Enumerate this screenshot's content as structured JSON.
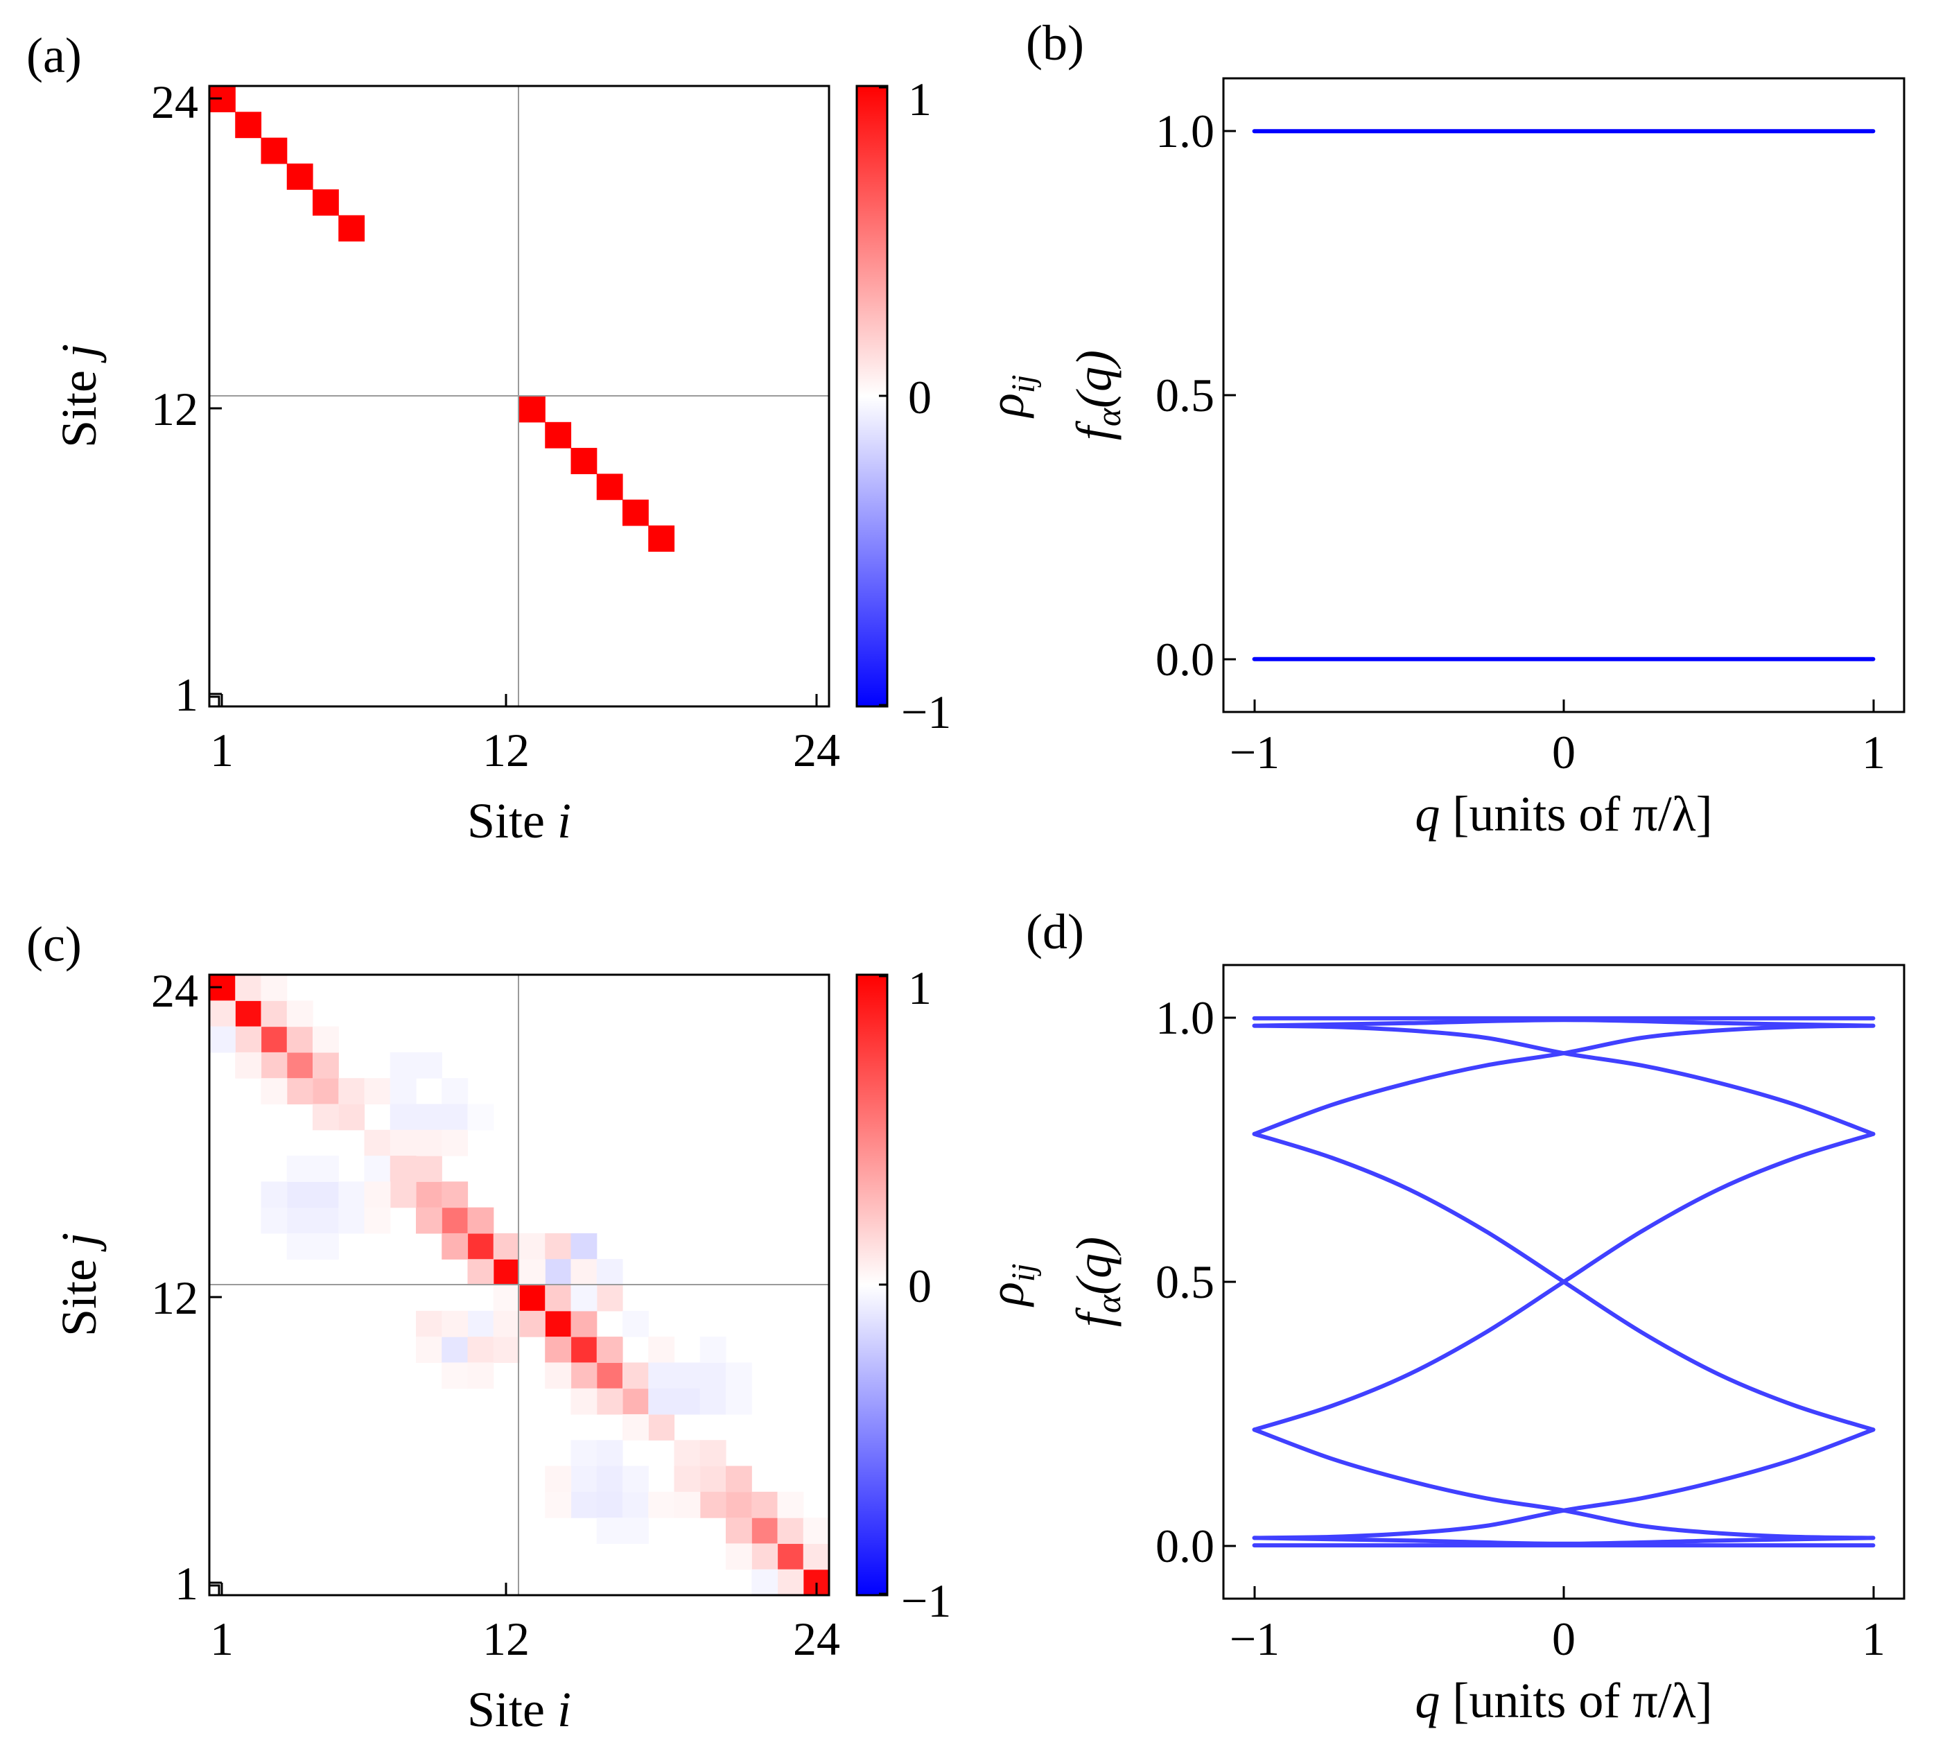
{
  "figure": {
    "panels": [
      {
        "label": "(a)"
      },
      {
        "label": "(b)"
      },
      {
        "label": "(c)"
      },
      {
        "label": "(d)"
      }
    ]
  },
  "colors": {
    "positive": "#ff0000",
    "zero": "#ffffff",
    "negative": "#0000ff",
    "band_line": "#0000ff",
    "band_line_d": "#4040ff",
    "grid": "#9a9a9a"
  },
  "chart_data": [
    {
      "panel": "(a)",
      "type": "heatmap",
      "xlabel_prefix": "Site ",
      "xlabel_var": "i",
      "ylabel_prefix": "Site ",
      "ylabel_var": "j",
      "grid_n": 24,
      "xticks": [
        "1",
        "12",
        "24"
      ],
      "yticks": [
        "1",
        "12",
        "24"
      ],
      "colorbar": {
        "label": "ρ",
        "label_sub": "ij",
        "ticks": [
          "1",
          "0",
          "−1"
        ],
        "range": [
          -1,
          1
        ]
      },
      "cells": [
        {
          "i": 1,
          "j": 24,
          "v": 1.0
        },
        {
          "i": 2,
          "j": 23,
          "v": 1.0
        },
        {
          "i": 3,
          "j": 22,
          "v": 1.0
        },
        {
          "i": 4,
          "j": 21,
          "v": 1.0
        },
        {
          "i": 5,
          "j": 20,
          "v": 1.0
        },
        {
          "i": 6,
          "j": 19,
          "v": 1.0
        },
        {
          "i": 13,
          "j": 12,
          "v": 1.0
        },
        {
          "i": 14,
          "j": 11,
          "v": 1.0
        },
        {
          "i": 15,
          "j": 10,
          "v": 1.0
        },
        {
          "i": 16,
          "j": 9,
          "v": 1.0
        },
        {
          "i": 17,
          "j": 8,
          "v": 1.0
        },
        {
          "i": 18,
          "j": 7,
          "v": 1.0
        }
      ]
    },
    {
      "panel": "(b)",
      "type": "line",
      "xlabel_var": "q",
      "xlabel_rest": " [units of π/λ]",
      "ylabel": "f",
      "ylabel_sub": "α",
      "ylabel_arg": "(q)",
      "xlim": [
        -1.1,
        1.1
      ],
      "ylim": [
        -0.1,
        1.1
      ],
      "xticks": [
        {
          "v": -1,
          "label": "−1"
        },
        {
          "v": 0,
          "label": "0"
        },
        {
          "v": 1,
          "label": "1"
        }
      ],
      "yticks": [
        {
          "v": 0,
          "label": "0.0"
        },
        {
          "v": 0.5,
          "label": "0.5"
        },
        {
          "v": 1,
          "label": "1.0"
        }
      ],
      "series": [
        {
          "name": "band-1",
          "x": [
            -1,
            1
          ],
          "y": [
            1.0,
            1.0
          ]
        },
        {
          "name": "band-0",
          "x": [
            -1,
            1
          ],
          "y": [
            0.0,
            0.0
          ]
        }
      ]
    },
    {
      "panel": "(c)",
      "type": "heatmap",
      "xlabel_prefix": "Site ",
      "xlabel_var": "i",
      "ylabel_prefix": "Site ",
      "ylabel_var": "j",
      "grid_n": 24,
      "xticks": [
        "1",
        "12",
        "24"
      ],
      "yticks": [
        "1",
        "12",
        "24"
      ],
      "colorbar": {
        "label": "ρ",
        "label_sub": "ij",
        "ticks": [
          "1",
          "0",
          "−1"
        ],
        "range": [
          -1,
          1
        ]
      },
      "cells": [
        {
          "i": 1,
          "j": 24,
          "v": 1.0
        },
        {
          "i": 2,
          "j": 23,
          "v": 0.95
        },
        {
          "i": 3,
          "j": 22,
          "v": 0.7
        },
        {
          "i": 4,
          "j": 21,
          "v": 0.5
        },
        {
          "i": 5,
          "j": 20,
          "v": 0.25
        },
        {
          "i": 6,
          "j": 19,
          "v": 0.12
        },
        {
          "i": 7,
          "j": 18,
          "v": 0.08
        },
        {
          "i": 8,
          "j": 17,
          "v": 0.15
        },
        {
          "i": 9,
          "j": 16,
          "v": 0.3
        },
        {
          "i": 10,
          "j": 15,
          "v": 0.55
        },
        {
          "i": 11,
          "j": 14,
          "v": 0.8
        },
        {
          "i": 12,
          "j": 13,
          "v": 0.97
        },
        {
          "i": 13,
          "j": 12,
          "v": 1.0
        },
        {
          "i": 14,
          "j": 11,
          "v": 0.97
        },
        {
          "i": 15,
          "j": 10,
          "v": 0.8
        },
        {
          "i": 16,
          "j": 9,
          "v": 0.55
        },
        {
          "i": 17,
          "j": 8,
          "v": 0.3
        },
        {
          "i": 18,
          "j": 7,
          "v": 0.15
        },
        {
          "i": 19,
          "j": 6,
          "v": 0.08
        },
        {
          "i": 20,
          "j": 5,
          "v": 0.12
        },
        {
          "i": 21,
          "j": 4,
          "v": 0.25
        },
        {
          "i": 22,
          "j": 3,
          "v": 0.5
        },
        {
          "i": 23,
          "j": 2,
          "v": 0.7
        },
        {
          "i": 24,
          "j": 1,
          "v": 0.95
        },
        {
          "i": 2,
          "j": 24,
          "v": 0.1
        },
        {
          "i": 1,
          "j": 23,
          "v": 0.1
        },
        {
          "i": 3,
          "j": 23,
          "v": 0.15
        },
        {
          "i": 2,
          "j": 22,
          "v": 0.15
        },
        {
          "i": 4,
          "j": 22,
          "v": 0.2
        },
        {
          "i": 3,
          "j": 21,
          "v": 0.2
        },
        {
          "i": 5,
          "j": 21,
          "v": 0.2
        },
        {
          "i": 4,
          "j": 20,
          "v": 0.2
        },
        {
          "i": 6,
          "j": 20,
          "v": 0.1
        },
        {
          "i": 5,
          "j": 19,
          "v": 0.1
        },
        {
          "i": 9,
          "j": 17,
          "v": 0.15
        },
        {
          "i": 8,
          "j": 16,
          "v": 0.15
        },
        {
          "i": 10,
          "j": 16,
          "v": 0.25
        },
        {
          "i": 9,
          "j": 15,
          "v": 0.25
        },
        {
          "i": 11,
          "j": 15,
          "v": 0.3
        },
        {
          "i": 10,
          "j": 14,
          "v": 0.3
        },
        {
          "i": 12,
          "j": 14,
          "v": 0.2
        },
        {
          "i": 11,
          "j": 13,
          "v": 0.2
        },
        {
          "i": 14,
          "j": 12,
          "v": 0.2
        },
        {
          "i": 13,
          "j": 11,
          "v": 0.2
        },
        {
          "i": 15,
          "j": 11,
          "v": 0.3
        },
        {
          "i": 14,
          "j": 10,
          "v": 0.3
        },
        {
          "i": 16,
          "j": 10,
          "v": 0.25
        },
        {
          "i": 15,
          "j": 9,
          "v": 0.25
        },
        {
          "i": 17,
          "j": 9,
          "v": 0.15
        },
        {
          "i": 16,
          "j": 8,
          "v": 0.15
        },
        {
          "i": 20,
          "j": 6,
          "v": 0.1
        },
        {
          "i": 19,
          "j": 5,
          "v": 0.1
        },
        {
          "i": 21,
          "j": 5,
          "v": 0.2
        },
        {
          "i": 20,
          "j": 4,
          "v": 0.2
        },
        {
          "i": 22,
          "j": 4,
          "v": 0.2
        },
        {
          "i": 21,
          "j": 3,
          "v": 0.2
        },
        {
          "i": 23,
          "j": 3,
          "v": 0.15
        },
        {
          "i": 22,
          "j": 2,
          "v": 0.15
        },
        {
          "i": 24,
          "j": 2,
          "v": 0.1
        },
        {
          "i": 23,
          "j": 1,
          "v": 0.1
        },
        {
          "i": 3,
          "j": 24,
          "v": 0.04
        },
        {
          "i": 1,
          "j": 22,
          "v": -0.05
        },
        {
          "i": 4,
          "j": 23,
          "v": 0.04
        },
        {
          "i": 2,
          "j": 21,
          "v": 0.05
        },
        {
          "i": 5,
          "j": 22,
          "v": 0.04
        },
        {
          "i": 3,
          "j": 20,
          "v": 0.04
        },
        {
          "i": 7,
          "j": 20,
          "v": 0.05
        },
        {
          "i": 8,
          "j": 20,
          "v": -0.04
        },
        {
          "i": 8,
          "j": 21,
          "v": -0.04
        },
        {
          "i": 9,
          "j": 21,
          "v": -0.04
        },
        {
          "i": 8,
          "j": 19,
          "v": -0.06
        },
        {
          "i": 9,
          "j": 19,
          "v": -0.06
        },
        {
          "i": 8,
          "j": 18,
          "v": 0.05
        },
        {
          "i": 9,
          "j": 18,
          "v": 0.05
        },
        {
          "i": 7,
          "j": 17,
          "v": -0.03
        },
        {
          "i": 8,
          "j": 17,
          "v": 0.15
        },
        {
          "i": 10,
          "j": 20,
          "v": -0.03
        },
        {
          "i": 10,
          "j": 19,
          "v": -0.06
        },
        {
          "i": 10,
          "j": 18,
          "v": 0.04
        },
        {
          "i": 11,
          "j": 19,
          "v": -0.02
        },
        {
          "i": 4,
          "j": 15,
          "v": -0.06
        },
        {
          "i": 5,
          "j": 15,
          "v": -0.06
        },
        {
          "i": 4,
          "j": 16,
          "v": -0.08
        },
        {
          "i": 5,
          "j": 16,
          "v": -0.08
        },
        {
          "i": 3,
          "j": 15,
          "v": -0.04
        },
        {
          "i": 3,
          "j": 16,
          "v": -0.05
        },
        {
          "i": 6,
          "j": 16,
          "v": -0.04
        },
        {
          "i": 6,
          "j": 15,
          "v": -0.04
        },
        {
          "i": 4,
          "j": 14,
          "v": -0.03
        },
        {
          "i": 5,
          "j": 14,
          "v": -0.03
        },
        {
          "i": 4,
          "j": 17,
          "v": -0.03
        },
        {
          "i": 5,
          "j": 17,
          "v": -0.03
        },
        {
          "i": 7,
          "j": 16,
          "v": 0.04
        },
        {
          "i": 7,
          "j": 15,
          "v": 0.03
        },
        {
          "i": 13,
          "j": 14,
          "v": 0.05
        },
        {
          "i": 14,
          "j": 14,
          "v": 0.15
        },
        {
          "i": 15,
          "j": 14,
          "v": -0.15
        },
        {
          "i": 14,
          "j": 13,
          "v": -0.15
        },
        {
          "i": 15,
          "j": 13,
          "v": 0.05
        },
        {
          "i": 16,
          "j": 13,
          "v": -0.05
        },
        {
          "i": 13,
          "j": 13,
          "v": 0.04
        },
        {
          "i": 16,
          "j": 12,
          "v": 0.12
        },
        {
          "i": 15,
          "j": 12,
          "v": -0.04
        },
        {
          "i": 12,
          "j": 12,
          "v": 0.03
        },
        {
          "i": 9,
          "j": 11,
          "v": 0.08
        },
        {
          "i": 9,
          "j": 10,
          "v": 0.04
        },
        {
          "i": 10,
          "j": 10,
          "v": -0.1
        },
        {
          "i": 11,
          "j": 11,
          "v": -0.05
        },
        {
          "i": 11,
          "j": 10,
          "v": 0.1
        },
        {
          "i": 10,
          "j": 11,
          "v": 0.05
        },
        {
          "i": 12,
          "j": 10,
          "v": 0.08
        },
        {
          "i": 12,
          "j": 11,
          "v": 0.05
        },
        {
          "i": 10,
          "j": 9,
          "v": 0.03
        },
        {
          "i": 11,
          "j": 9,
          "v": 0.04
        },
        {
          "i": 14,
          "j": 9,
          "v": 0.05
        },
        {
          "i": 15,
          "j": 8,
          "v": 0.05
        },
        {
          "i": 17,
          "j": 11,
          "v": -0.03
        },
        {
          "i": 18,
          "j": 10,
          "v": 0.04
        },
        {
          "i": 18,
          "j": 9,
          "v": -0.06
        },
        {
          "i": 19,
          "j": 9,
          "v": -0.06
        },
        {
          "i": 18,
          "j": 8,
          "v": -0.08
        },
        {
          "i": 19,
          "j": 8,
          "v": -0.08
        },
        {
          "i": 20,
          "j": 9,
          "v": -0.06
        },
        {
          "i": 20,
          "j": 8,
          "v": -0.06
        },
        {
          "i": 17,
          "j": 7,
          "v": 0.04
        },
        {
          "i": 20,
          "j": 10,
          "v": -0.03
        },
        {
          "i": 21,
          "j": 9,
          "v": -0.03
        },
        {
          "i": 21,
          "j": 8,
          "v": -0.03
        },
        {
          "i": 15,
          "j": 6,
          "v": -0.04
        },
        {
          "i": 16,
          "j": 6,
          "v": -0.05
        },
        {
          "i": 15,
          "j": 5,
          "v": -0.05
        },
        {
          "i": 16,
          "j": 5,
          "v": -0.07
        },
        {
          "i": 15,
          "j": 4,
          "v": -0.07
        },
        {
          "i": 16,
          "j": 4,
          "v": -0.08
        },
        {
          "i": 17,
          "j": 4,
          "v": -0.05
        },
        {
          "i": 17,
          "j": 5,
          "v": -0.04
        },
        {
          "i": 14,
          "j": 5,
          "v": 0.04
        },
        {
          "i": 14,
          "j": 4,
          "v": 0.03
        },
        {
          "i": 16,
          "j": 3,
          "v": -0.03
        },
        {
          "i": 17,
          "j": 3,
          "v": -0.03
        },
        {
          "i": 18,
          "j": 4,
          "v": 0.03
        },
        {
          "i": 19,
          "j": 4,
          "v": 0.04
        },
        {
          "i": 21,
          "j": 2,
          "v": 0.04
        },
        {
          "i": 22,
          "j": 1,
          "v": -0.04
        },
        {
          "i": 23,
          "j": 4,
          "v": 0.03
        },
        {
          "i": 24,
          "j": 3,
          "v": 0.03
        }
      ]
    },
    {
      "panel": "(d)",
      "type": "line",
      "xlabel_var": "q",
      "xlabel_rest": " [units of π/λ]",
      "ylabel": "f",
      "ylabel_sub": "α",
      "ylabel_arg": "(q)",
      "xlim": [
        -1.1,
        1.1
      ],
      "ylim": [
        -0.1,
        1.1
      ],
      "xticks": [
        {
          "v": -1,
          "label": "−1"
        },
        {
          "v": 0,
          "label": "0"
        },
        {
          "v": 1,
          "label": "1"
        }
      ],
      "yticks": [
        {
          "v": 0,
          "label": "0.0"
        },
        {
          "v": 0.5,
          "label": "0.5"
        },
        {
          "v": 1,
          "label": "1.0"
        }
      ],
      "series": [
        {
          "name": "band-top-flat",
          "x": [
            -1,
            -0.5,
            0,
            0.5,
            1
          ],
          "y": [
            0.999,
            0.999,
            0.999,
            0.999,
            0.999
          ]
        },
        {
          "name": "band-top-dip",
          "x": [
            -1,
            -0.5,
            0,
            0.5,
            1
          ],
          "y": [
            0.985,
            0.99,
            0.996,
            0.99,
            0.985
          ]
        },
        {
          "name": "band-upper-x1",
          "x": [
            -1,
            -0.75,
            -0.5,
            -0.25,
            0,
            0.25,
            0.5,
            0.75,
            1
          ],
          "y": [
            0.985,
            0.983,
            0.976,
            0.962,
            0.933,
            0.91,
            0.877,
            0.835,
            0.78
          ]
        },
        {
          "name": "band-upper-x2",
          "x": [
            -1,
            -0.75,
            -0.5,
            -0.25,
            0,
            0.25,
            0.5,
            0.75,
            1
          ],
          "y": [
            0.78,
            0.835,
            0.877,
            0.91,
            0.933,
            0.962,
            0.976,
            0.983,
            0.985
          ]
        },
        {
          "name": "band-mid-down",
          "x": [
            -1,
            -0.75,
            -0.5,
            -0.25,
            0,
            0.25,
            0.5,
            0.75,
            1
          ],
          "y": [
            0.78,
            0.735,
            0.675,
            0.595,
            0.5,
            0.405,
            0.325,
            0.265,
            0.22
          ]
        },
        {
          "name": "band-mid-up",
          "x": [
            -1,
            -0.75,
            -0.5,
            -0.25,
            0,
            0.25,
            0.5,
            0.75,
            1
          ],
          "y": [
            0.22,
            0.265,
            0.325,
            0.405,
            0.5,
            0.595,
            0.675,
            0.735,
            0.78
          ]
        },
        {
          "name": "band-lower-x1",
          "x": [
            -1,
            -0.75,
            -0.5,
            -0.25,
            0,
            0.25,
            0.5,
            0.75,
            1
          ],
          "y": [
            0.22,
            0.165,
            0.123,
            0.09,
            0.067,
            0.038,
            0.024,
            0.017,
            0.015
          ]
        },
        {
          "name": "band-lower-x2",
          "x": [
            -1,
            -0.75,
            -0.5,
            -0.25,
            0,
            0.25,
            0.5,
            0.75,
            1
          ],
          "y": [
            0.015,
            0.017,
            0.024,
            0.038,
            0.067,
            0.09,
            0.123,
            0.165,
            0.22
          ]
        },
        {
          "name": "band-bottom-bump",
          "x": [
            -1,
            -0.5,
            0,
            0.5,
            1
          ],
          "y": [
            0.015,
            0.01,
            0.004,
            0.01,
            0.015
          ]
        },
        {
          "name": "band-bottom-flat",
          "x": [
            -1,
            -0.5,
            0,
            0.5,
            1
          ],
          "y": [
            0.001,
            0.001,
            0.001,
            0.001,
            0.001
          ]
        }
      ]
    }
  ]
}
